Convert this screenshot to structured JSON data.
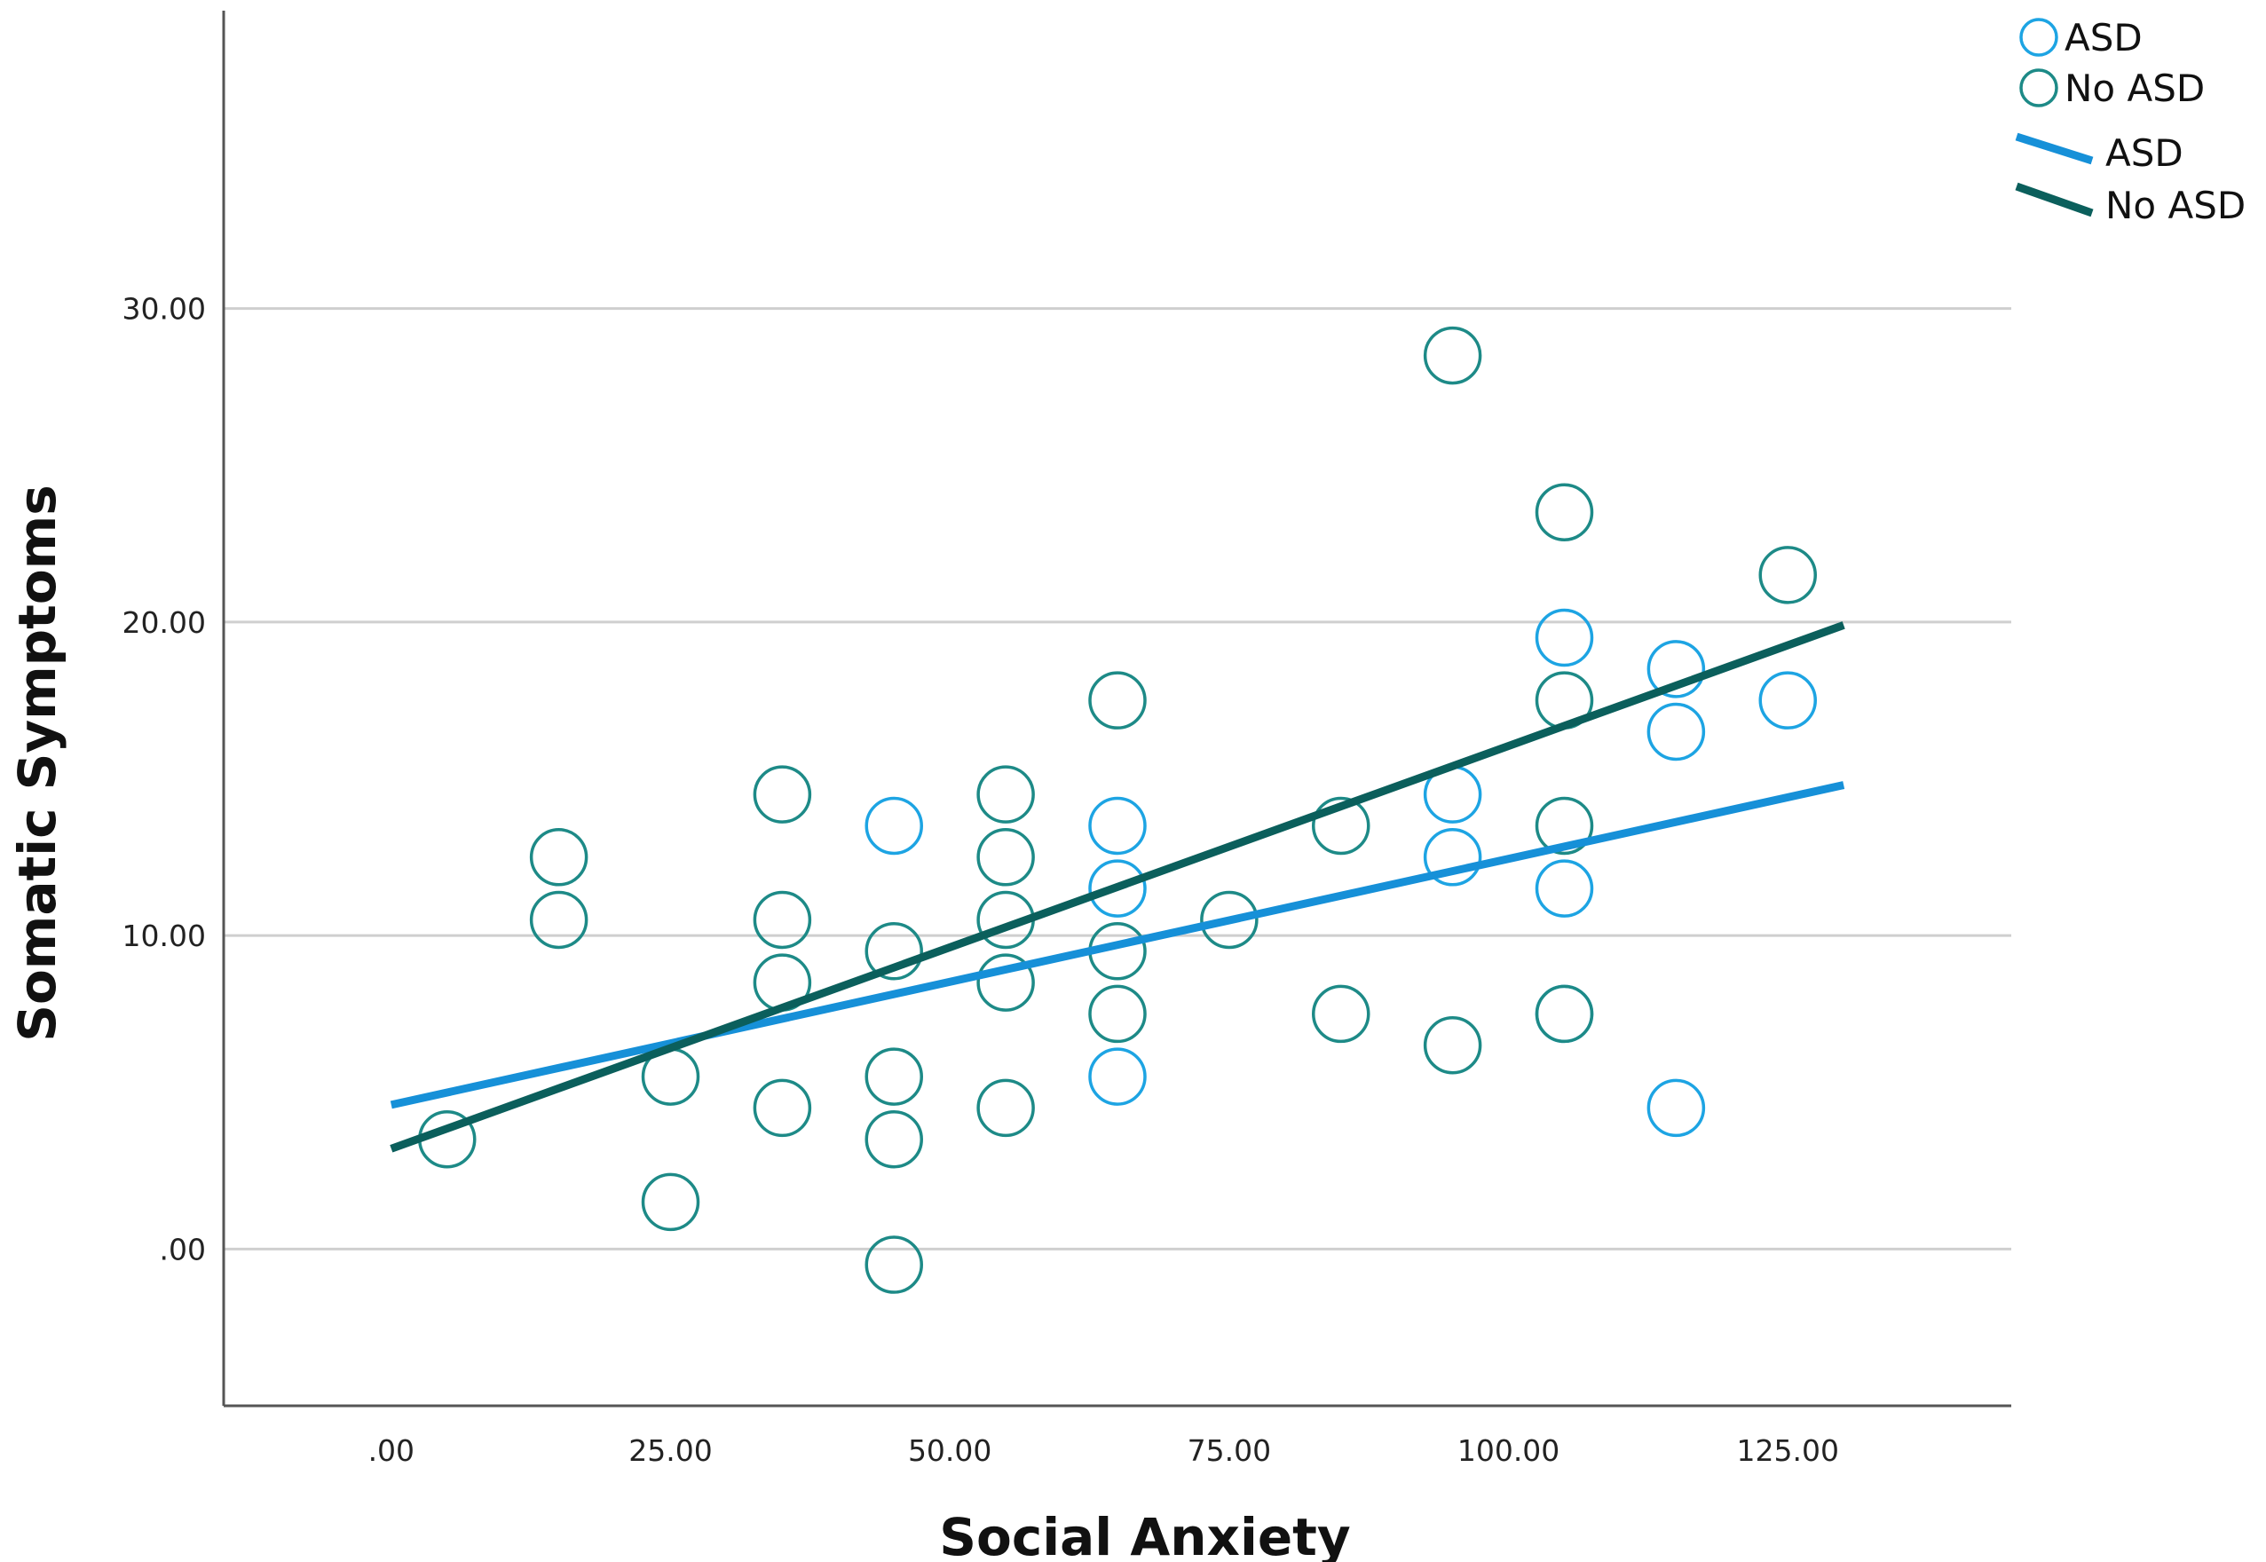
{
  "chart_data": {
    "type": "scatter",
    "title": "",
    "xlabel": "Social Anxiety",
    "ylabel": "Somatic Symptoms",
    "xlim": [
      -15,
      145
    ],
    "ylim": [
      -5,
      39.5
    ],
    "xticks": [
      0,
      25,
      50,
      75,
      100,
      125
    ],
    "xtick_labels": [
      ".00",
      "25.00",
      "50.00",
      "75.00",
      "100.00",
      "125.00"
    ],
    "yticks": [
      0,
      10,
      20,
      30
    ],
    "ytick_labels": [
      ".00",
      "10.00",
      "20.00",
      "30.00"
    ],
    "grid": "horizontal",
    "legend_position": "top-right",
    "series": [
      {
        "name": "ASD",
        "kind": "scatter",
        "color": "#1da4e3",
        "points": [
          [
            45,
            13.5
          ],
          [
            65,
            13.5
          ],
          [
            65,
            11.5
          ],
          [
            65,
            5.5
          ],
          [
            95,
            14.5
          ],
          [
            95,
            12.5
          ],
          [
            105,
            19.5
          ],
          [
            105,
            11.5
          ],
          [
            105,
            7.5
          ],
          [
            115,
            18.5
          ],
          [
            115,
            16.5
          ],
          [
            115,
            4.5
          ],
          [
            125,
            17.5
          ]
        ]
      },
      {
        "name": "No ASD",
        "kind": "scatter",
        "color": "#1d8a87",
        "points": [
          [
            5,
            3.5
          ],
          [
            15,
            12.5
          ],
          [
            15,
            10.5
          ],
          [
            25,
            5.5
          ],
          [
            25,
            1.5
          ],
          [
            35,
            14.5
          ],
          [
            35,
            10.5
          ],
          [
            35,
            8.5
          ],
          [
            35,
            4.5
          ],
          [
            45,
            9.5
          ],
          [
            45,
            5.5
          ],
          [
            45,
            3.5
          ],
          [
            45,
            -0.5
          ],
          [
            55,
            14.5
          ],
          [
            55,
            12.5
          ],
          [
            55,
            10.5
          ],
          [
            55,
            8.5
          ],
          [
            55,
            4.5
          ],
          [
            65,
            17.5
          ],
          [
            65,
            9.5
          ],
          [
            65,
            7.5
          ],
          [
            75,
            10.5
          ],
          [
            85,
            13.5
          ],
          [
            85,
            7.5
          ],
          [
            95,
            28.5
          ],
          [
            95,
            6.5
          ],
          [
            105,
            23.5
          ],
          [
            105,
            17.5
          ],
          [
            105,
            13.5
          ],
          [
            105,
            7.5
          ],
          [
            125,
            21.5
          ]
        ]
      },
      {
        "name": "ASD",
        "kind": "fit-line",
        "color": "#1690d8",
        "x": [
          0,
          130
        ],
        "y": [
          4.6,
          14.8
        ]
      },
      {
        "name": "No ASD",
        "kind": "fit-line",
        "color": "#0b5f5c",
        "x": [
          0,
          130
        ],
        "y": [
          3.2,
          19.9
        ]
      }
    ]
  }
}
